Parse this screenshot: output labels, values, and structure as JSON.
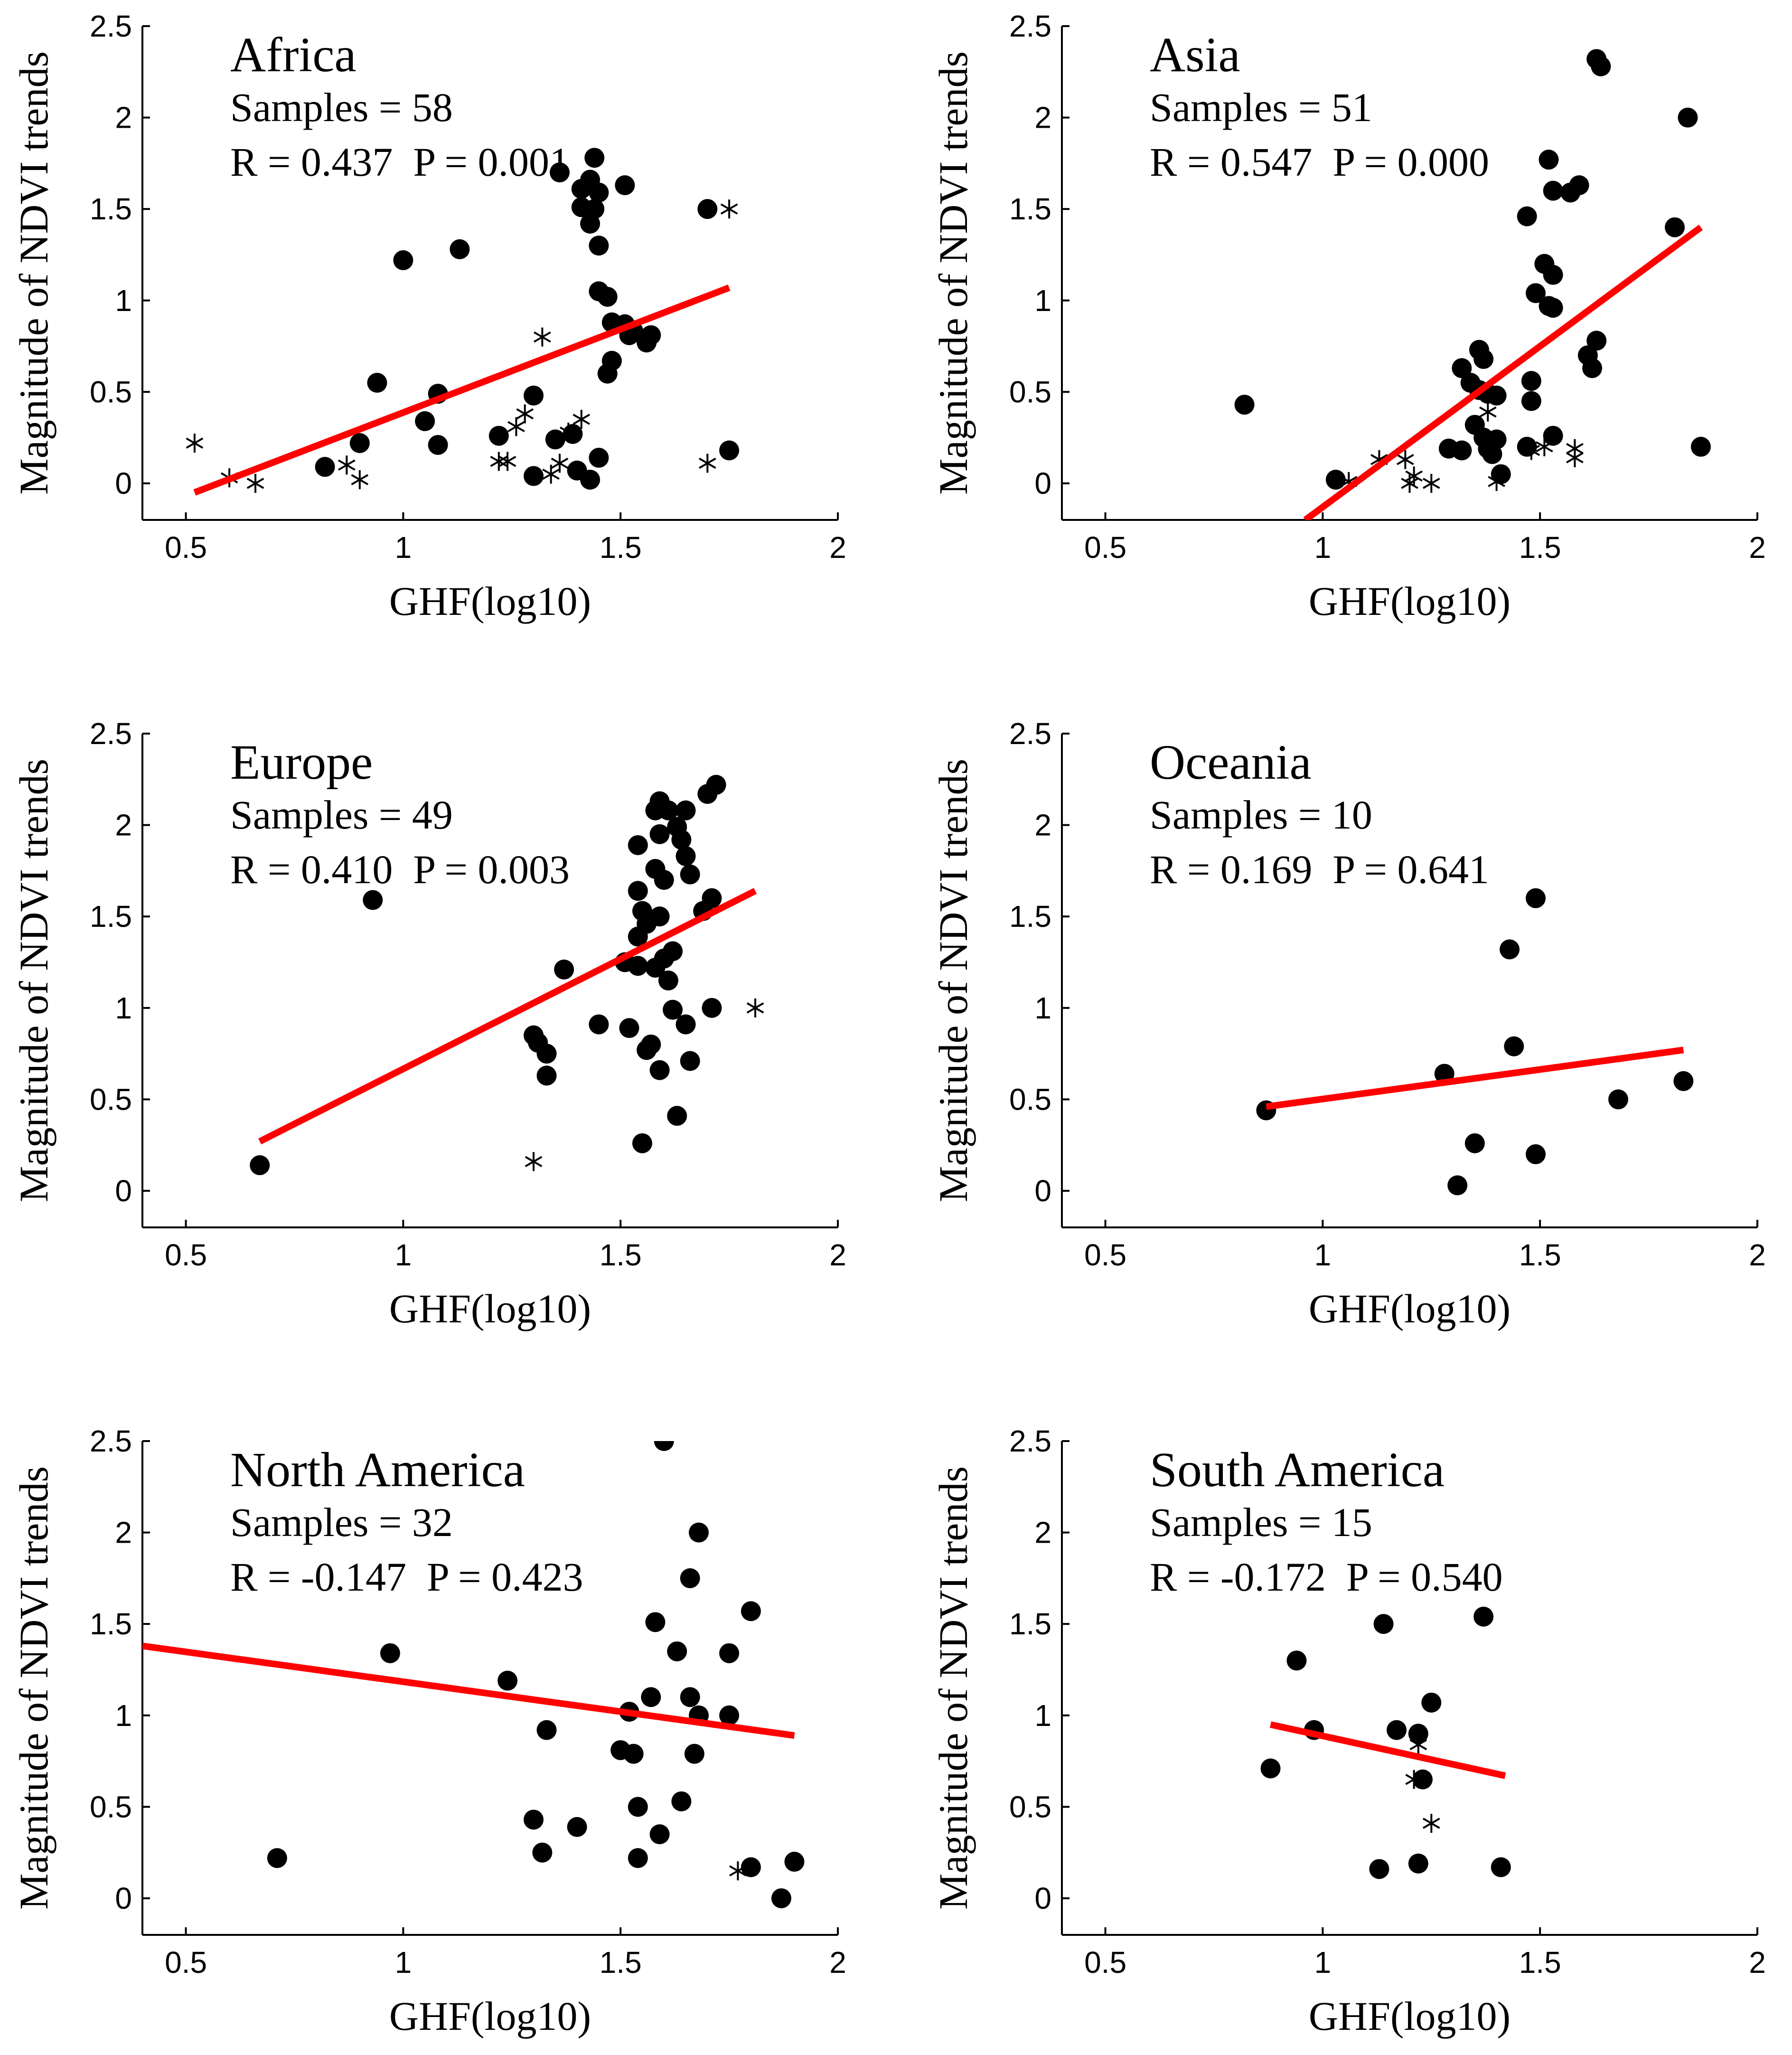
{
  "figure": {
    "y_axis_label": "Magnitude of NDVI trends",
    "x_axis_label": "GHF(log10)"
  },
  "chart_data": [
    {
      "type": "scatter",
      "title": "Africa",
      "samples_label": "Samples = 58",
      "stats_label": "R = 0.437  P = 0.001",
      "xlabel": "GHF(log10)",
      "ylabel": "Magnitude of NDVI trends",
      "xlim": [
        0.4,
        2
      ],
      "ylim": [
        -0.2,
        2.5
      ],
      "xticks": [
        "0.5",
        "1",
        "1.5",
        "2"
      ],
      "yticks": [
        "0",
        "0.5",
        "1",
        "1.5",
        "2",
        "2.5"
      ],
      "regression": {
        "x": [
          0.52,
          1.75
        ],
        "y": [
          -0.05,
          1.07
        ],
        "color": "#ff0000"
      },
      "series": [
        {
          "name": "dots",
          "marker": "dot",
          "points": [
            [
              1.44,
              1.78
            ],
            [
              1.36,
              1.7
            ],
            [
              1.43,
              1.66
            ],
            [
              1.51,
              1.63
            ],
            [
              1.41,
              1.61
            ],
            [
              1.45,
              1.59
            ],
            [
              1.41,
              1.51
            ],
            [
              1.44,
              1.5
            ],
            [
              1.43,
              1.42
            ],
            [
              1.7,
              1.5
            ],
            [
              1.13,
              1.28
            ],
            [
              1.45,
              1.3
            ],
            [
              1.0,
              1.22
            ],
            [
              1.45,
              1.05
            ],
            [
              1.47,
              1.02
            ],
            [
              1.48,
              0.88
            ],
            [
              1.51,
              0.87
            ],
            [
              1.53,
              0.83
            ],
            [
              1.57,
              0.81
            ],
            [
              1.52,
              0.81
            ],
            [
              1.56,
              0.77
            ],
            [
              1.48,
              0.67
            ],
            [
              1.47,
              0.6
            ],
            [
              0.94,
              0.55
            ],
            [
              1.08,
              0.49
            ],
            [
              1.3,
              0.48
            ],
            [
              1.05,
              0.34
            ],
            [
              1.39,
              0.27
            ],
            [
              1.22,
              0.26
            ],
            [
              1.35,
              0.24
            ],
            [
              0.9,
              0.22
            ],
            [
              1.08,
              0.21
            ],
            [
              1.45,
              0.14
            ],
            [
              0.82,
              0.09
            ],
            [
              1.4,
              0.07
            ],
            [
              1.3,
              0.04
            ],
            [
              1.43,
              0.02
            ],
            [
              1.75,
              0.18
            ]
          ]
        },
        {
          "name": "stars",
          "marker": "star",
          "points": [
            [
              1.75,
              1.5
            ],
            [
              1.32,
              0.8
            ],
            [
              1.41,
              0.35
            ],
            [
              1.28,
              0.38
            ],
            [
              1.26,
              0.31
            ],
            [
              1.38,
              0.28
            ],
            [
              0.52,
              0.22
            ],
            [
              1.22,
              0.12
            ],
            [
              1.24,
              0.12
            ],
            [
              0.87,
              0.1
            ],
            [
              1.36,
              0.11
            ],
            [
              1.34,
              0.05
            ],
            [
              1.7,
              0.11
            ],
            [
              0.6,
              0.03
            ],
            [
              0.66,
              0.0
            ],
            [
              0.9,
              0.02
            ]
          ]
        }
      ]
    },
    {
      "type": "scatter",
      "title": "Asia",
      "samples_label": "Samples = 51",
      "stats_label": "R = 0.547  P = 0.000",
      "xlabel": "GHF(log10)",
      "ylabel": "Magnitude of NDVI trends",
      "xlim": [
        0.4,
        2
      ],
      "ylim": [
        -0.2,
        2.5
      ],
      "xticks": [
        "0.5",
        "1",
        "1.5",
        "2"
      ],
      "yticks": [
        "0",
        "0.5",
        "1",
        "1.5",
        "2",
        "2.5"
      ],
      "regression": {
        "x": [
          0.96,
          1.87
        ],
        "y": [
          -0.2,
          1.4
        ],
        "color": "#ff0000"
      },
      "series": [
        {
          "name": "dots",
          "marker": "dot",
          "points": [
            [
              1.63,
              2.32
            ],
            [
              1.64,
              2.28
            ],
            [
              1.84,
              2.0
            ],
            [
              1.52,
              1.77
            ],
            [
              1.53,
              1.6
            ],
            [
              1.57,
              1.59
            ],
            [
              1.59,
              1.63
            ],
            [
              1.47,
              1.46
            ],
            [
              1.81,
              1.4
            ],
            [
              1.51,
              1.2
            ],
            [
              1.53,
              1.14
            ],
            [
              1.49,
              1.04
            ],
            [
              1.52,
              0.97
            ],
            [
              1.53,
              0.96
            ],
            [
              1.63,
              0.78
            ],
            [
              1.36,
              0.73
            ],
            [
              1.37,
              0.68
            ],
            [
              1.61,
              0.7
            ],
            [
              1.62,
              0.63
            ],
            [
              1.32,
              0.63
            ],
            [
              1.34,
              0.55
            ],
            [
              1.48,
              0.56
            ],
            [
              0.82,
              0.43
            ],
            [
              1.4,
              0.48
            ],
            [
              1.48,
              0.45
            ],
            [
              1.36,
              0.51
            ],
            [
              1.38,
              0.49
            ],
            [
              1.35,
              0.32
            ],
            [
              1.37,
              0.25
            ],
            [
              1.4,
              0.24
            ],
            [
              1.53,
              0.26
            ],
            [
              1.38,
              0.19
            ],
            [
              1.39,
              0.16
            ],
            [
              1.32,
              0.18
            ],
            [
              1.29,
              0.19
            ],
            [
              1.47,
              0.2
            ],
            [
              1.41,
              0.05
            ],
            [
              1.03,
              0.02
            ],
            [
              1.87,
              0.2
            ]
          ]
        },
        {
          "name": "stars",
          "marker": "star",
          "points": [
            [
              1.38,
              0.39
            ],
            [
              1.13,
              0.13
            ],
            [
              1.19,
              0.13
            ],
            [
              1.21,
              0.04
            ],
            [
              1.2,
              0.0
            ],
            [
              1.25,
              0.0
            ],
            [
              1.06,
              0.01
            ],
            [
              1.48,
              0.18
            ],
            [
              1.51,
              0.2
            ],
            [
              1.58,
              0.19
            ],
            [
              1.58,
              0.14
            ],
            [
              1.4,
              0.01
            ]
          ]
        }
      ]
    },
    {
      "type": "scatter",
      "title": "Europe",
      "samples_label": "Samples = 49",
      "stats_label": "R = 0.410  P = 0.003",
      "xlabel": "GHF(log10)",
      "ylabel": "Magnitude of NDVI trends",
      "xlim": [
        0.4,
        2
      ],
      "ylim": [
        -0.2,
        2.5
      ],
      "xticks": [
        "0.5",
        "1",
        "1.5",
        "2"
      ],
      "yticks": [
        "0",
        "0.5",
        "1",
        "1.5",
        "2",
        "2.5"
      ],
      "regression": {
        "x": [
          0.67,
          1.81
        ],
        "y": [
          0.27,
          1.64
        ],
        "color": "#ff0000"
      },
      "series": [
        {
          "name": "dots",
          "marker": "dot",
          "points": [
            [
              1.72,
              2.22
            ],
            [
              1.7,
              2.17
            ],
            [
              1.59,
              2.13
            ],
            [
              1.58,
              2.08
            ],
            [
              1.61,
              2.08
            ],
            [
              1.65,
              2.08
            ],
            [
              1.63,
              1.99
            ],
            [
              1.59,
              1.95
            ],
            [
              1.64,
              1.92
            ],
            [
              1.54,
              1.89
            ],
            [
              1.58,
              1.76
            ],
            [
              1.65,
              1.83
            ],
            [
              1.66,
              1.73
            ],
            [
              1.6,
              1.7
            ],
            [
              1.54,
              1.64
            ],
            [
              1.71,
              1.6
            ],
            [
              1.69,
              1.53
            ],
            [
              1.55,
              1.53
            ],
            [
              1.59,
              1.5
            ],
            [
              1.56,
              1.46
            ],
            [
              1.54,
              1.39
            ],
            [
              1.62,
              1.31
            ],
            [
              1.6,
              1.27
            ],
            [
              1.51,
              1.25
            ],
            [
              1.54,
              1.23
            ],
            [
              1.58,
              1.22
            ],
            [
              1.61,
              1.15
            ],
            [
              1.37,
              1.21
            ],
            [
              0.93,
              1.59
            ],
            [
              1.45,
              0.91
            ],
            [
              1.52,
              0.89
            ],
            [
              1.62,
              0.99
            ],
            [
              1.71,
              1.0
            ],
            [
              1.65,
              0.91
            ],
            [
              1.3,
              0.85
            ],
            [
              1.31,
              0.81
            ],
            [
              1.33,
              0.75
            ],
            [
              1.57,
              0.8
            ],
            [
              1.56,
              0.77
            ],
            [
              1.66,
              0.71
            ],
            [
              1.59,
              0.66
            ],
            [
              1.33,
              0.63
            ],
            [
              1.63,
              0.41
            ],
            [
              1.55,
              0.26
            ],
            [
              0.67,
              0.14
            ]
          ]
        },
        {
          "name": "stars",
          "marker": "star",
          "points": [
            [
              1.81,
              1.0
            ],
            [
              1.3,
              0.16
            ]
          ]
        }
      ]
    },
    {
      "type": "scatter",
      "title": "Oceania",
      "samples_label": "Samples = 10",
      "stats_label": "R = 0.169  P = 0.641",
      "xlabel": "GHF(log10)",
      "ylabel": "Magnitude of NDVI trends",
      "xlim": [
        0.4,
        2
      ],
      "ylim": [
        -0.2,
        2.5
      ],
      "xticks": [
        "0.5",
        "1",
        "1.5",
        "2"
      ],
      "yticks": [
        "0",
        "0.5",
        "1",
        "1.5",
        "2",
        "2.5"
      ],
      "regression": {
        "x": [
          0.87,
          1.83
        ],
        "y": [
          0.46,
          0.77
        ],
        "color": "#ff0000"
      },
      "series": [
        {
          "name": "dots",
          "marker": "dot",
          "points": [
            [
              1.49,
              1.6
            ],
            [
              1.43,
              1.32
            ],
            [
              1.44,
              0.79
            ],
            [
              1.28,
              0.64
            ],
            [
              1.83,
              0.6
            ],
            [
              1.68,
              0.5
            ],
            [
              0.87,
              0.44
            ],
            [
              1.35,
              0.26
            ],
            [
              1.49,
              0.2
            ],
            [
              1.31,
              0.03
            ]
          ]
        }
      ]
    },
    {
      "type": "scatter",
      "title": "North America",
      "samples_label": "Samples = 32",
      "stats_label": "R = -0.147  P = 0.423",
      "xlabel": "GHF(log10)",
      "ylabel": "Magnitude of NDVI trends",
      "xlim": [
        0.4,
        2
      ],
      "ylim": [
        -0.2,
        2.5
      ],
      "xticks": [
        "0.5",
        "1",
        "1.5",
        "2"
      ],
      "yticks": [
        "0",
        "0.5",
        "1",
        "1.5",
        "2",
        "2.5"
      ],
      "regression": {
        "x": [
          0.4,
          1.9
        ],
        "y": [
          1.38,
          0.89
        ],
        "color": "#ff0000"
      },
      "series": [
        {
          "name": "dots",
          "marker": "dot",
          "points": [
            [
              1.6,
              2.5
            ],
            [
              1.68,
              2.0
            ],
            [
              1.66,
              1.75
            ],
            [
              1.8,
              1.57
            ],
            [
              1.58,
              1.51
            ],
            [
              1.63,
              1.35
            ],
            [
              1.75,
              1.34
            ],
            [
              0.97,
              1.34
            ],
            [
              1.24,
              1.19
            ],
            [
              1.57,
              1.1
            ],
            [
              1.66,
              1.1
            ],
            [
              1.52,
              1.02
            ],
            [
              1.68,
              1.0
            ],
            [
              1.75,
              1.0
            ],
            [
              1.33,
              0.92
            ],
            [
              1.5,
              0.81
            ],
            [
              1.53,
              0.79
            ],
            [
              1.67,
              0.79
            ],
            [
              1.64,
              0.53
            ],
            [
              1.54,
              0.5
            ],
            [
              1.3,
              0.43
            ],
            [
              1.4,
              0.39
            ],
            [
              1.59,
              0.35
            ],
            [
              1.32,
              0.25
            ],
            [
              1.54,
              0.22
            ],
            [
              0.71,
              0.22
            ],
            [
              1.8,
              0.17
            ],
            [
              1.9,
              0.2
            ],
            [
              1.87,
              0.0
            ]
          ]
        },
        {
          "name": "stars",
          "marker": "star",
          "points": [
            [
              1.77,
              0.15
            ]
          ]
        }
      ]
    },
    {
      "type": "scatter",
      "title": "South America",
      "samples_label": "Samples = 15",
      "stats_label": "R = -0.172  P = 0.540",
      "xlabel": "GHF(log10)",
      "ylabel": "Magnitude of NDVI trends",
      "xlim": [
        0.4,
        2
      ],
      "ylim": [
        -0.2,
        2.5
      ],
      "xticks": [
        "0.5",
        "1",
        "1.5",
        "2"
      ],
      "yticks": [
        "0",
        "0.5",
        "1",
        "1.5",
        "2",
        "2.5"
      ],
      "regression": {
        "x": [
          0.88,
          1.42
        ],
        "y": [
          0.95,
          0.67
        ],
        "color": "#ff0000"
      },
      "series": [
        {
          "name": "dots",
          "marker": "dot",
          "points": [
            [
              1.37,
              1.54
            ],
            [
              1.14,
              1.5
            ],
            [
              0.94,
              1.3
            ],
            [
              1.25,
              1.07
            ],
            [
              0.98,
              0.92
            ],
            [
              1.17,
              0.92
            ],
            [
              1.22,
              0.9
            ],
            [
              0.88,
              0.71
            ],
            [
              1.23,
              0.65
            ],
            [
              1.22,
              0.19
            ],
            [
              1.13,
              0.16
            ],
            [
              1.41,
              0.17
            ]
          ]
        },
        {
          "name": "stars",
          "marker": "star",
          "points": [
            [
              1.22,
              0.84
            ],
            [
              1.21,
              0.65
            ],
            [
              1.25,
              0.41
            ]
          ]
        }
      ]
    }
  ]
}
